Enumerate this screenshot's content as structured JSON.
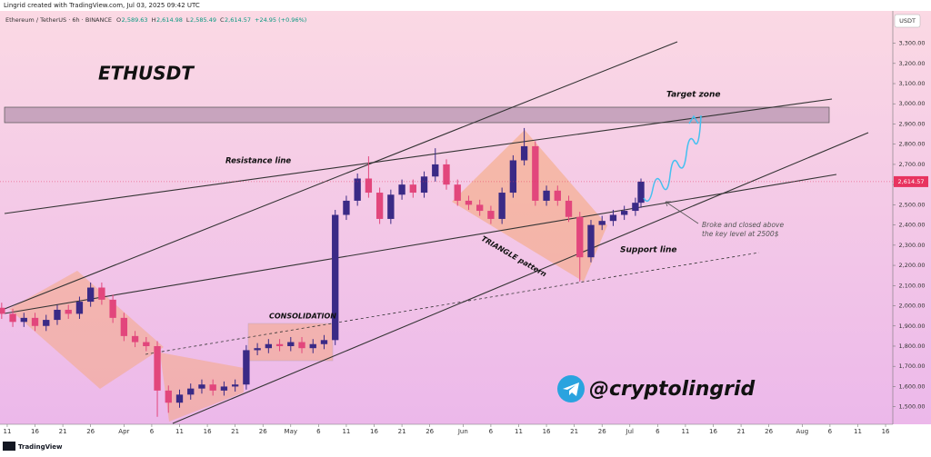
{
  "header": {
    "credit": "Lingrid created with TradingView.com, Jul 03, 2025 09:42 UTC",
    "symbol": "Ethereum / TetherUS · 6h · BINANCE",
    "ohlc": [
      {
        "label": "O",
        "value": "2,589.63"
      },
      {
        "label": "H",
        "value": "2,614.98"
      },
      {
        "label": "L",
        "value": "2,585.49"
      },
      {
        "label": "C",
        "value": "2,614.57"
      }
    ],
    "change": "+24.95 (+0.96%)"
  },
  "footer": {
    "brand": "TradingView"
  },
  "chart_data": {
    "type": "candlestick",
    "currency": "USDT",
    "up_color": "#3a2a86",
    "down_color": "#e2467c",
    "last": {
      "value": 2614.57,
      "label": "2,614.57"
    },
    "last_color": "#e8335f",
    "xlim": [
      8.7,
      169.3
    ],
    "ylim": [
      1413,
      3460
    ],
    "xticks": [
      {
        "value": 10,
        "label": "11"
      },
      {
        "value": 15,
        "label": "16"
      },
      {
        "value": 20,
        "label": "21"
      },
      {
        "value": 25,
        "label": "26"
      },
      {
        "value": 31,
        "label": "Apr"
      },
      {
        "value": 36,
        "label": "6"
      },
      {
        "value": 41,
        "label": "11"
      },
      {
        "value": 46,
        "label": "16"
      },
      {
        "value": 51,
        "label": "21"
      },
      {
        "value": 56,
        "label": "26"
      },
      {
        "value": 61,
        "label": "May"
      },
      {
        "value": 66,
        "label": "6"
      },
      {
        "value": 71,
        "label": "11"
      },
      {
        "value": 76,
        "label": "16"
      },
      {
        "value": 81,
        "label": "21"
      },
      {
        "value": 86,
        "label": "26"
      },
      {
        "value": 92,
        "label": "Jun"
      },
      {
        "value": 97,
        "label": "6"
      },
      {
        "value": 102,
        "label": "11"
      },
      {
        "value": 107,
        "label": "16"
      },
      {
        "value": 112,
        "label": "21"
      },
      {
        "value": 117,
        "label": "26"
      },
      {
        "value": 122,
        "label": "Jul"
      },
      {
        "value": 127,
        "label": "6"
      },
      {
        "value": 132,
        "label": "11"
      },
      {
        "value": 137,
        "label": "16"
      },
      {
        "value": 142,
        "label": "21"
      },
      {
        "value": 147,
        "label": "26"
      },
      {
        "value": 153,
        "label": "Aug"
      },
      {
        "value": 158,
        "label": "6"
      },
      {
        "value": 163,
        "label": "11"
      },
      {
        "value": 168,
        "label": "16"
      }
    ],
    "yticks": [
      {
        "value": 1500,
        "label": "1,500.00"
      },
      {
        "value": 1600,
        "label": "1,600.00"
      },
      {
        "value": 1700,
        "label": "1,700.00"
      },
      {
        "value": 1800,
        "label": "1,800.00"
      },
      {
        "value": 1900,
        "label": "1,900.00"
      },
      {
        "value": 2000,
        "label": "2,000.00"
      },
      {
        "value": 2100,
        "label": "2,100.00"
      },
      {
        "value": 2200,
        "label": "2,200.00"
      },
      {
        "value": 2300,
        "label": "2,300.00"
      },
      {
        "value": 2400,
        "label": "2,400.00"
      },
      {
        "value": 2500,
        "label": "2,500.00"
      },
      {
        "value": 2600,
        "label": "2,600.00"
      },
      {
        "value": 2700,
        "label": "2,700.00"
      },
      {
        "value": 2800,
        "label": "2,800.00"
      },
      {
        "value": 2900,
        "label": "2,900.00"
      },
      {
        "value": 3000,
        "label": "3,000.00"
      },
      {
        "value": 3100,
        "label": "3,100.00"
      },
      {
        "value": 3200,
        "label": "3,200.00"
      },
      {
        "value": 3300,
        "label": "3,300.00"
      }
    ],
    "x": [
      9,
      11,
      13,
      15,
      17,
      19,
      21,
      23,
      25,
      27,
      29,
      31,
      33,
      35,
      37,
      39,
      41,
      43,
      45,
      47,
      49,
      51,
      53,
      55,
      57,
      59,
      61,
      63,
      65,
      67,
      69,
      71,
      73,
      75,
      77,
      79,
      81,
      83,
      85,
      87,
      89,
      91,
      93,
      95,
      97,
      99,
      101,
      103,
      105,
      107,
      109,
      111,
      113,
      115,
      117,
      119,
      121,
      123,
      124
    ],
    "open": [
      1990,
      1960,
      1920,
      1940,
      1900,
      1930,
      1980,
      1960,
      2020,
      2090,
      2030,
      1940,
      1850,
      1820,
      1800,
      1580,
      1520,
      1560,
      1590,
      1610,
      1580,
      1600,
      1610,
      1780,
      1790,
      1810,
      1800,
      1820,
      1790,
      1810,
      1830,
      2450,
      2520,
      2630,
      2560,
      2430,
      2550,
      2600,
      2560,
      2640,
      2700,
      2600,
      2520,
      2500,
      2470,
      2430,
      2560,
      2720,
      2790,
      2520,
      2570,
      2520,
      2440,
      2240,
      2400,
      2420,
      2450,
      2470,
      2510
    ],
    "high": [
      2015,
      1985,
      1965,
      1965,
      1955,
      2005,
      2005,
      2045,
      2115,
      2115,
      2055,
      1965,
      1875,
      1845,
      1825,
      1605,
      1585,
      1615,
      1635,
      1635,
      1625,
      1635,
      1805,
      1815,
      1835,
      1835,
      1845,
      1845,
      1835,
      1855,
      2475,
      2545,
      2655,
      2740,
      2585,
      2575,
      2625,
      2625,
      2665,
      2780,
      2725,
      2625,
      2545,
      2525,
      2495,
      2585,
      2745,
      2880,
      2815,
      2595,
      2595,
      2545,
      2465,
      2425,
      2445,
      2475,
      2495,
      2535,
      2630
    ],
    "low": [
      1935,
      1895,
      1895,
      1875,
      1875,
      1905,
      1935,
      1935,
      1995,
      2005,
      1915,
      1825,
      1795,
      1775,
      1450,
      1470,
      1495,
      1535,
      1565,
      1555,
      1555,
      1575,
      1585,
      1755,
      1765,
      1775,
      1775,
      1765,
      1765,
      1785,
      1805,
      2425,
      2495,
      2535,
      2405,
      2405,
      2525,
      2535,
      2535,
      2615,
      2575,
      2495,
      2475,
      2445,
      2405,
      2405,
      2535,
      2695,
      2495,
      2495,
      2495,
      2415,
      2120,
      2215,
      2375,
      2395,
      2425,
      2445,
      2485
    ],
    "close": [
      1960,
      1920,
      1940,
      1900,
      1930,
      1980,
      1960,
      2020,
      2090,
      2030,
      1940,
      1850,
      1820,
      1800,
      1580,
      1520,
      1560,
      1590,
      1610,
      1580,
      1600,
      1610,
      1780,
      1790,
      1810,
      1800,
      1820,
      1790,
      1810,
      1830,
      2450,
      2520,
      2630,
      2560,
      2430,
      2550,
      2600,
      2560,
      2640,
      2700,
      2600,
      2520,
      2500,
      2470,
      2430,
      2560,
      2720,
      2790,
      2520,
      2570,
      2520,
      2440,
      2240,
      2400,
      2420,
      2450,
      2470,
      2510,
      2614.57
    ]
  },
  "annotations": {
    "ticker": "ETHUSDT",
    "target": "Target zone",
    "resistance": "Resistance line",
    "consolidation": "CONSOLIDATION",
    "triangle": "TRIANGLE pattern",
    "support": "Support line",
    "note": [
      "Broke and  closed above",
      "the key level at 2500$"
    ],
    "handle": "@cryptolingrid"
  }
}
